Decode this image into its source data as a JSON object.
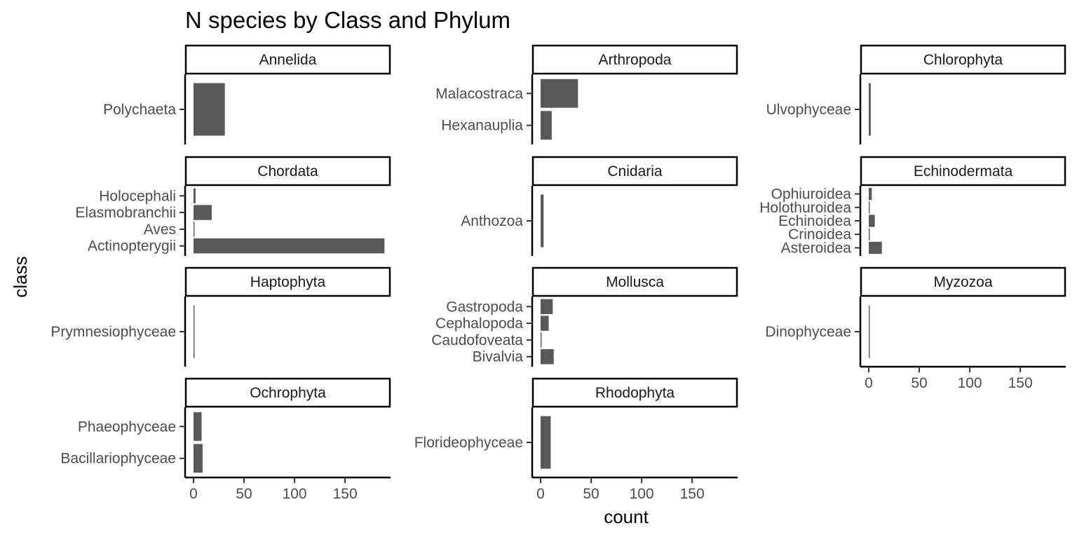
{
  "chart_data": {
    "type": "bar",
    "orientation": "horizontal",
    "title": "N species by Class and Phylum",
    "xlabel": "count",
    "ylabel": "class",
    "xlim": [
      0,
      195
    ],
    "xticks": [
      0,
      50,
      100,
      150
    ],
    "grid": false,
    "bar_color": "#595959",
    "facets": [
      {
        "phylum": "Annelida",
        "categories": [
          "Polychaeta"
        ],
        "values": [
          31
        ]
      },
      {
        "phylum": "Arthropoda",
        "categories": [
          "Malacostraca",
          "Hexanauplia"
        ],
        "values": [
          37,
          11
        ]
      },
      {
        "phylum": "Chlorophyta",
        "categories": [
          "Ulvophyceae"
        ],
        "values": [
          2
        ]
      },
      {
        "phylum": "Chordata",
        "categories": [
          "Holocephali",
          "Elasmobranchii",
          "Aves",
          "Actinopterygii"
        ],
        "values": [
          2,
          18,
          1,
          189
        ]
      },
      {
        "phylum": "Cnidaria",
        "categories": [
          "Anthozoa"
        ],
        "values": [
          3
        ]
      },
      {
        "phylum": "Echinodermata",
        "categories": [
          "Ophiuroidea",
          "Holothuroidea",
          "Echinoidea",
          "Crinoidea",
          "Asteroidea"
        ],
        "values": [
          3,
          1,
          6,
          1,
          13
        ]
      },
      {
        "phylum": "Haptophyta",
        "categories": [
          "Prymnesiophyceae"
        ],
        "values": [
          1
        ]
      },
      {
        "phylum": "Mollusca",
        "categories": [
          "Gastropoda",
          "Cephalopoda",
          "Caudofoveata",
          "Bivalvia"
        ],
        "values": [
          12,
          8,
          1,
          13
        ]
      },
      {
        "phylum": "Myzozoa",
        "categories": [
          "Dinophyceae"
        ],
        "values": [
          1
        ]
      },
      {
        "phylum": "Ochrophyta",
        "categories": [
          "Phaeophyceae",
          "Bacillariophyceae"
        ],
        "values": [
          8,
          9
        ]
      },
      {
        "phylum": "Rhodophyta",
        "categories": [
          "Florideophyceae"
        ],
        "values": [
          10
        ]
      }
    ]
  }
}
